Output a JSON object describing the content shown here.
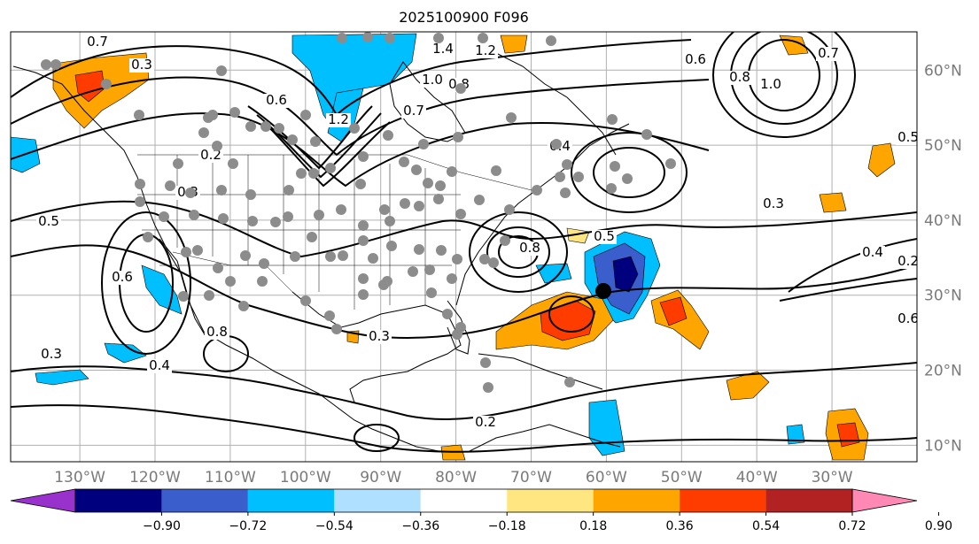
{
  "title": "2025100900 F096",
  "map": {
    "lon_labels": [
      "130°W",
      "120°W",
      "110°W",
      "100°W",
      "90°W",
      "80°W",
      "70°W",
      "60°W",
      "50°W",
      "40°W",
      "30°W"
    ],
    "lon_values": [
      -130,
      -120,
      -110,
      -100,
      -90,
      -80,
      -70,
      -60,
      -50,
      -40,
      -30
    ],
    "lat_labels": [
      "60°N",
      "50°N",
      "40°N",
      "30°N",
      "20°N",
      "10°N"
    ],
    "lat_values": [
      60,
      50,
      40,
      30,
      20,
      10
    ],
    "contour_labels": [
      "0.7",
      "0.3",
      "0.2",
      "0.5",
      "0.6",
      "0.8",
      "0.4",
      "0.3",
      "1.4",
      "1.2",
      "1.0",
      "0.8",
      "0.7",
      "1.2",
      "0.8",
      "0.4",
      "0.5",
      "0.6",
      "0.3",
      "1.0",
      "0.8",
      "0.7",
      "0.6",
      "0.3",
      "0.4",
      "0.6",
      "0.5",
      "0.2",
      "0.3",
      "0.2"
    ],
    "shading_colors": {
      "deep_blue": "#00007f",
      "blue": "#3a5fcd",
      "light_blue": "#00bfff",
      "orange": "#ffa500",
      "red_orange": "#ff3c00",
      "dark_red": "#b22222",
      "yellow": "#ffe680"
    },
    "marker_color": "#8c8c8c"
  },
  "colorbar": {
    "tick_labels": [
      "−0.90",
      "−0.72",
      "−0.54",
      "−0.36",
      "−0.18",
      "0.18",
      "0.36",
      "0.54",
      "0.72",
      "0.90"
    ],
    "colors": [
      "#9932cc",
      "#00007f",
      "#3a5fcd",
      "#00bfff",
      "#b0e0ff",
      "#ffffff",
      "#ffe680",
      "#ffa500",
      "#ff3c00",
      "#b22222",
      "#ff88b4"
    ]
  }
}
